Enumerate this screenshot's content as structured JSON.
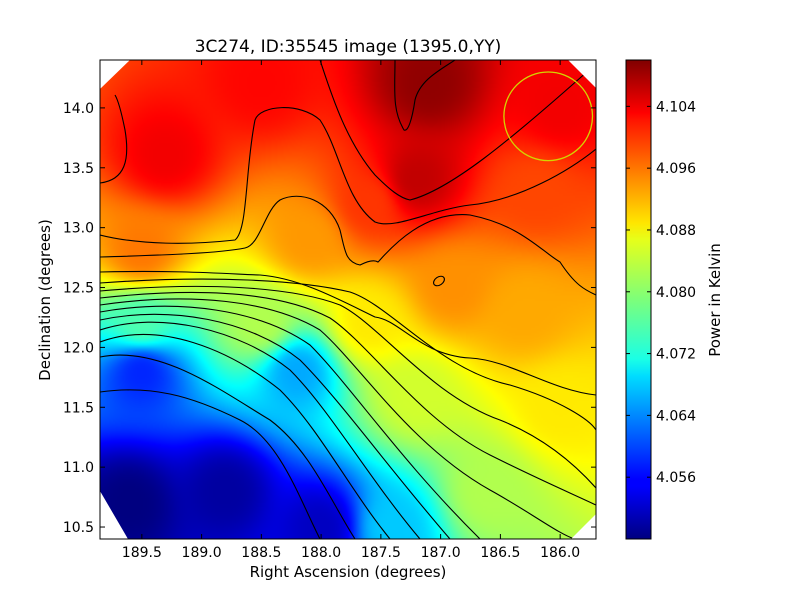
{
  "chart_data": {
    "type": "heatmap",
    "title": "3C274, ID:35545 image (1395.0,YY)",
    "xlabel": "Right Ascension (degrees)",
    "ylabel": "Declination (degrees)",
    "colorbar_label": "Power in Kelvin",
    "colormap": "jet",
    "grid": false,
    "xlim": [
      189.85,
      185.7
    ],
    "ylim": [
      10.4,
      14.4
    ],
    "clim": [
      4.048,
      4.11
    ],
    "x_ticks": [
      {
        "value": 189.5,
        "label": "189.5"
      },
      {
        "value": 189.0,
        "label": "189.0"
      },
      {
        "value": 188.5,
        "label": "188.5"
      },
      {
        "value": 188.0,
        "label": "188.0"
      },
      {
        "value": 187.5,
        "label": "187.5"
      },
      {
        "value": 187.0,
        "label": "187.0"
      },
      {
        "value": 186.5,
        "label": "186.5"
      },
      {
        "value": 186.0,
        "label": "186.0"
      }
    ],
    "y_ticks": [
      {
        "value": 10.5,
        "label": "10.5"
      },
      {
        "value": 11.0,
        "label": "11.0"
      },
      {
        "value": 11.5,
        "label": "11.5"
      },
      {
        "value": 12.0,
        "label": "12.0"
      },
      {
        "value": 12.5,
        "label": "12.5"
      },
      {
        "value": 13.0,
        "label": "13.0"
      },
      {
        "value": 13.5,
        "label": "13.5"
      },
      {
        "value": 14.0,
        "label": "14.0"
      }
    ],
    "colorbar_ticks": [
      {
        "value": 4.056,
        "label": "4.056"
      },
      {
        "value": 4.064,
        "label": "4.064"
      },
      {
        "value": 4.072,
        "label": "4.072"
      },
      {
        "value": 4.08,
        "label": "4.080"
      },
      {
        "value": 4.088,
        "label": "4.088"
      },
      {
        "value": 4.096,
        "label": "4.096"
      },
      {
        "value": 4.104,
        "label": "4.104"
      }
    ],
    "field_features": [
      {
        "ra": 189.6,
        "dec": 10.7,
        "value": 4.048
      },
      {
        "ra": 188.8,
        "dec": 10.8,
        "value": 4.05
      },
      {
        "ra": 188.0,
        "dec": 10.5,
        "value": 4.052
      },
      {
        "ra": 187.4,
        "dec": 10.5,
        "value": 4.068
      },
      {
        "ra": 186.6,
        "dec": 10.8,
        "value": 4.082
      },
      {
        "ra": 186.0,
        "dec": 11.5,
        "value": 4.088
      },
      {
        "ra": 187.2,
        "dec": 11.6,
        "value": 4.084
      },
      {
        "ra": 188.2,
        "dec": 11.8,
        "value": 4.066
      },
      {
        "ra": 189.5,
        "dec": 11.8,
        "value": 4.058
      },
      {
        "ra": 189.5,
        "dec": 12.2,
        "value": 4.076
      },
      {
        "ra": 188.5,
        "dec": 12.2,
        "value": 4.082
      },
      {
        "ra": 187.6,
        "dec": 12.2,
        "value": 4.088
      },
      {
        "ra": 186.9,
        "dec": 12.5,
        "value": 4.0935
      },
      {
        "ra": 186.3,
        "dec": 12.3,
        "value": 4.092
      },
      {
        "ra": 188.1,
        "dec": 12.9,
        "value": 4.093
      },
      {
        "ra": 189.5,
        "dec": 12.8,
        "value": 4.095
      },
      {
        "ra": 187.6,
        "dec": 13.2,
        "value": 4.099
      },
      {
        "ra": 186.2,
        "dec": 13.3,
        "value": 4.098
      },
      {
        "ra": 189.3,
        "dec": 13.6,
        "value": 4.103
      },
      {
        "ra": 187.1,
        "dec": 14.2,
        "value": 4.109
      },
      {
        "ra": 187.2,
        "dec": 13.4,
        "value": 4.106
      },
      {
        "ra": 186.0,
        "dec": 14.0,
        "value": 4.103
      },
      {
        "ra": 188.5,
        "dec": 14.2,
        "value": 4.102
      }
    ],
    "beam_circle": {
      "ra": 186.1,
      "dec": 13.93,
      "radius_deg": 0.37,
      "color": "#d4d400"
    }
  }
}
